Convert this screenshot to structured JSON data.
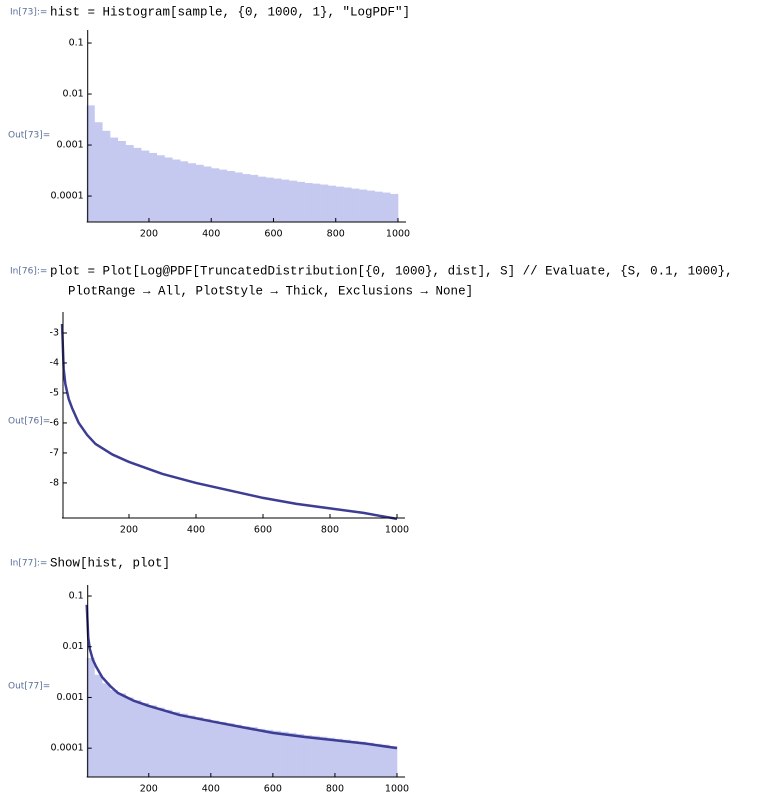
{
  "cells": [
    {
      "in_label": "In[73]:=",
      "code": [
        "hist = Histogram[sample, {0, 1000, 1}, \"LogPDF\"]"
      ],
      "out_label": "Out[73]="
    },
    {
      "in_label": "In[76]:=",
      "code": [
        "plot = Plot[Log@PDF[TruncatedDistribution[{0, 1000}, dist], S] // Evaluate, {S, 0.1, 1000},",
        "PlotRange → All, PlotStyle → Thick, Exclusions → None]"
      ],
      "out_label": "Out[76]="
    },
    {
      "in_label": "In[77]:=",
      "code": [
        "Show[hist, plot]"
      ],
      "out_label": "Out[77]="
    }
  ],
  "chart_data": [
    {
      "type": "histogram",
      "log_y": true,
      "color": "#c5c9f0",
      "bins": [
        0,
        25,
        50,
        75,
        100,
        125,
        150,
        175,
        200,
        225,
        250,
        275,
        300,
        325,
        350,
        375,
        400,
        425,
        450,
        475,
        500,
        525,
        550,
        575,
        600,
        625,
        650,
        675,
        700,
        725,
        750,
        775,
        800,
        825,
        850,
        875,
        900,
        925,
        950,
        975,
        1000
      ],
      "values": [
        0.006,
        0.0028,
        0.0019,
        0.0014,
        0.0012,
        0.001,
        0.00088,
        0.00078,
        0.0007,
        0.00063,
        0.00057,
        0.00052,
        0.00048,
        0.00044,
        0.00041,
        0.00038,
        0.00035,
        0.00033,
        0.00031,
        0.00029,
        0.00027,
        0.00026,
        0.00024,
        0.00023,
        0.00022,
        0.00021,
        0.0002,
        0.00019,
        0.00018,
        0.000175,
        0.000168,
        0.00016,
        0.000153,
        0.000147,
        0.00014,
        0.000134,
        0.000128,
        0.000122,
        0.000117,
        0.00011
      ],
      "xlim": [
        0,
        1000
      ],
      "xticks": [
        200,
        400,
        600,
        800,
        1000
      ],
      "ylim": [
        3.1e-05,
        0.18
      ],
      "yticks": [
        0.1,
        0.01,
        0.001,
        0.0001
      ]
    },
    {
      "type": "line",
      "color": "#3d3d94",
      "x": [
        0.1,
        5,
        10,
        20,
        30,
        50,
        75,
        100,
        150,
        200,
        300,
        400,
        500,
        600,
        700,
        800,
        900,
        1000
      ],
      "values": [
        -2.7,
        -4.2,
        -4.7,
        -5.2,
        -5.5,
        -6.0,
        -6.4,
        -6.7,
        -7.05,
        -7.3,
        -7.7,
        -8.0,
        -8.25,
        -8.5,
        -8.7,
        -8.85,
        -9.0,
        -9.2
      ],
      "xlim": [
        0,
        1000
      ],
      "xticks": [
        200,
        400,
        600,
        800,
        1000
      ],
      "ylim": [
        -9.17,
        -2.3
      ],
      "yticks": [
        -3,
        -4,
        -5,
        -6,
        -7,
        -8
      ]
    },
    {
      "type": "histogram",
      "log_y": true,
      "color": "#c5c9f0",
      "bins": [
        0,
        25,
        50,
        75,
        100,
        125,
        150,
        175,
        200,
        225,
        250,
        275,
        300,
        325,
        350,
        375,
        400,
        425,
        450,
        475,
        500,
        525,
        550,
        575,
        600,
        625,
        650,
        675,
        700,
        725,
        750,
        775,
        800,
        825,
        850,
        875,
        900,
        925,
        950,
        975,
        1000
      ],
      "values": [
        0.006,
        0.0028,
        0.0019,
        0.0014,
        0.0012,
        0.001,
        0.00088,
        0.00078,
        0.0007,
        0.00063,
        0.00057,
        0.00052,
        0.00048,
        0.00044,
        0.00041,
        0.00038,
        0.00035,
        0.00033,
        0.00031,
        0.00029,
        0.00027,
        0.00026,
        0.00024,
        0.00023,
        0.00022,
        0.00021,
        0.0002,
        0.00019,
        0.00018,
        0.000175,
        0.000168,
        0.00016,
        0.000153,
        0.000147,
        0.00014,
        0.000134,
        0.000128,
        0.000122,
        0.000117,
        0.00011
      ],
      "line": {
        "color": "#3d3d94",
        "x": [
          0.1,
          5,
          10,
          20,
          30,
          50,
          75,
          100,
          150,
          200,
          300,
          400,
          500,
          600,
          700,
          800,
          900,
          1000
        ],
        "values": [
          0.067,
          0.015,
          0.0091,
          0.0055,
          0.0041,
          0.0025,
          0.0017,
          0.00123,
          0.00087,
          0.00068,
          0.00045,
          0.00034,
          0.00026,
          0.0002,
          0.000167,
          0.000143,
          0.000123,
          0.0001
        ]
      },
      "xlim": [
        0,
        1000
      ],
      "xticks": [
        200,
        400,
        600,
        800,
        1000
      ],
      "ylim": [
        2.7e-05,
        0.165
      ],
      "yticks": [
        0.1,
        0.01,
        0.001,
        0.0001
      ]
    }
  ]
}
